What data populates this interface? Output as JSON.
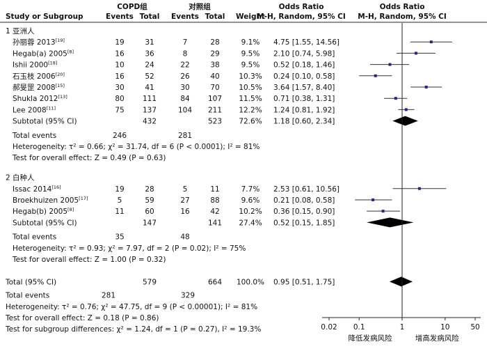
{
  "chart_data": {
    "type": "forest",
    "title": "",
    "scale": "log",
    "xlim": [
      0.02,
      50
    ],
    "null_value": 1,
    "ticks": [
      0.02,
      0.1,
      1,
      10,
      50
    ],
    "tick_labels": [
      "0.02",
      "0.1",
      "1",
      "10",
      "50"
    ],
    "favours_left": "降低发病风险",
    "favours_right": "增高发病风险",
    "headers": {
      "group1_name": "COPD组",
      "group2_name": "对照组",
      "study": "Study or Subgroup",
      "events": "Events",
      "total": "Total",
      "weight": "Weight",
      "or_title": "Odds Ratio",
      "or_method": "M-H, Random, 95% CI"
    },
    "subgroups": [
      {
        "label": "1 亚洲人",
        "studies": [
          {
            "name": "孙丽蓉 2013",
            "ref": "[19]",
            "e1": "19",
            "n1": "31",
            "e2": "7",
            "n2": "28",
            "weight": "9.1%",
            "ci_text": "4.75 [1.55, 14.56]",
            "or": 4.75,
            "lo": 1.55,
            "hi": 14.56
          },
          {
            "name": "Hegab(a) 2005",
            "ref": "[8]",
            "e1": "16",
            "n1": "36",
            "e2": "8",
            "n2": "29",
            "weight": "9.5%",
            "ci_text": "2.10 [0.74, 5.98]",
            "or": 2.1,
            "lo": 0.74,
            "hi": 5.98
          },
          {
            "name": "Ishii 2000",
            "ref": "[18]",
            "e1": "10",
            "n1": "24",
            "e2": "22",
            "n2": "38",
            "weight": "9.5%",
            "ci_text": "0.52 [0.18, 1.46]",
            "or": 0.52,
            "lo": 0.18,
            "hi": 1.46
          },
          {
            "name": "石玉枝 2006",
            "ref": "[20]",
            "e1": "16",
            "n1": "52",
            "e2": "26",
            "n2": "40",
            "weight": "10.3%",
            "ci_text": "0.24 [0.10, 0.58]",
            "or": 0.24,
            "lo": 0.1,
            "hi": 0.58
          },
          {
            "name": "郝旻罡 2008",
            "ref": "[15]",
            "e1": "30",
            "n1": "41",
            "e2": "30",
            "n2": "70",
            "weight": "10.5%",
            "ci_text": "3.64 [1.57, 8.40]",
            "or": 3.64,
            "lo": 1.57,
            "hi": 8.4
          },
          {
            "name": "Shukla 2012",
            "ref": "[13]",
            "e1": "80",
            "n1": "111",
            "e2": "84",
            "n2": "107",
            "weight": "11.5%",
            "ci_text": "0.71 [0.38, 1.31]",
            "or": 0.71,
            "lo": 0.38,
            "hi": 1.31
          },
          {
            "name": "Lee 2008",
            "ref": "[11]",
            "e1": "75",
            "n1": "137",
            "e2": "104",
            "n2": "211",
            "weight": "12.2%",
            "ci_text": "1.24 [0.81, 1.92]",
            "or": 1.24,
            "lo": 0.81,
            "hi": 1.92
          }
        ],
        "subtotal": {
          "label": "Subtotal (95% CI)",
          "n1": "432",
          "n2": "523",
          "weight": "72.6%",
          "ci_text": "1.18 [0.60, 2.34]",
          "or": 1.18,
          "lo": 0.6,
          "hi": 2.34
        },
        "total_events": {
          "label": "Total events",
          "e1": "246",
          "e2": "281"
        },
        "heterogeneity": "Heterogeneity: τ² = 0.66; χ² = 31.74, df = 6 (P < 0.0001); I² = 81%",
        "overall_effect": "Test for overall effect: Z = 0.49 (P = 0.63)"
      },
      {
        "label": "2 白种人",
        "studies": [
          {
            "name": "Issac 2014",
            "ref": "[16]",
            "e1": "19",
            "n1": "28",
            "e2": "5",
            "n2": "11",
            "weight": "7.7%",
            "ci_text": "2.53 [0.61, 10.56]",
            "or": 2.53,
            "lo": 0.61,
            "hi": 10.56
          },
          {
            "name": "Broekhuizen 2005",
            "ref": "[17]",
            "e1": "5",
            "n1": "59",
            "e2": "27",
            "n2": "88",
            "weight": "9.6%",
            "ci_text": "0.21 [0.08, 0.58]",
            "or": 0.21,
            "lo": 0.08,
            "hi": 0.58
          },
          {
            "name": "Hegab(b) 2005",
            "ref": "[8]",
            "e1": "11",
            "n1": "60",
            "e2": "16",
            "n2": "42",
            "weight": "10.2%",
            "ci_text": "0.36 [0.15, 0.90]",
            "or": 0.36,
            "lo": 0.15,
            "hi": 0.9
          }
        ],
        "subtotal": {
          "label": "Subtotal (95% CI)",
          "n1": "147",
          "n2": "141",
          "weight": "27.4%",
          "ci_text": "0.52 [0.15, 1.85]",
          "or": 0.52,
          "lo": 0.15,
          "hi": 1.85
        },
        "total_events": {
          "label": "Total events",
          "e1": "35",
          "e2": "48"
        },
        "heterogeneity": "Heterogeneity: τ² = 0.93; χ² = 7.97, df = 2 (P = 0.02); I² = 75%",
        "overall_effect": "Test for overall effect: Z = 1.00 (P = 0.32)"
      }
    ],
    "total": {
      "label": "Total (95% CI)",
      "n1": "579",
      "n2": "664",
      "weight": "100.0%",
      "ci_text": "0.95 [0.51, 1.75]",
      "or": 0.95,
      "lo": 0.51,
      "hi": 1.75
    },
    "total_events": {
      "label": "Total events",
      "e1": "281",
      "e2": "329"
    },
    "heterogeneity": "Heterogeneity: τ² = 0.76; χ² = 47.75, df = 9 (P < 0.00001); I² = 81%",
    "overall_effect": "Test for overall effect: Z = 0.18 (P = 0.86)",
    "subgroup_differences": "Test for subgroup differences: χ² = 1.24, df = 1 (P = 0.27), I² = 19.3%",
    "colors": {
      "marker": "#1f2a7a",
      "diamond": "#000000",
      "line": "#333333"
    }
  }
}
